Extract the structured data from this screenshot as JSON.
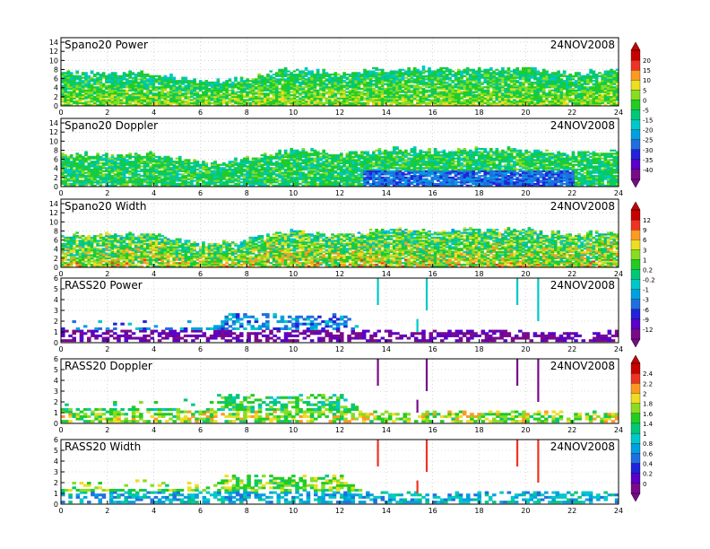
{
  "date_label": "24NOV2008",
  "x_ticks": [
    "0",
    "2",
    "4",
    "6",
    "8",
    "10",
    "12",
    "14",
    "16",
    "18",
    "20",
    "22",
    "24"
  ],
  "panels": [
    {
      "title": "Spano20 Power",
      "date": "24NOV2008",
      "y_ticks": [
        "0",
        "2",
        "4",
        "6",
        "8",
        "10",
        "12",
        "14"
      ],
      "colorbar": "power"
    },
    {
      "title": "Spano20 Doppler",
      "date": "24NOV2008",
      "y_ticks": [
        "0",
        "2",
        "4",
        "6",
        "8",
        "10",
        "12",
        "14"
      ],
      "colorbar": "doppler"
    },
    {
      "title": "Spano20 Width",
      "date": "24NOV2008",
      "y_ticks": [
        "0",
        "2",
        "4",
        "6",
        "8",
        "10",
        "12",
        "14"
      ],
      "colorbar": "width"
    },
    {
      "title": "RASS20 Power",
      "date": "24NOV2008",
      "y_ticks": [
        "0",
        "1",
        "2",
        "3",
        "4",
        "5",
        "6"
      ],
      "colorbar": "rass_power"
    },
    {
      "title": "RASS20 Doppler",
      "date": "24NOV2008",
      "y_ticks": [
        "0",
        "1",
        "2",
        "3",
        "4",
        "5",
        "6"
      ],
      "colorbar": "rass_doppler"
    },
    {
      "title": "RASS20 Width",
      "date": "24NOV2008",
      "y_ticks": [
        "0",
        "1",
        "2",
        "3",
        "4",
        "5",
        "6"
      ],
      "colorbar": "rass_width"
    }
  ],
  "colorbars": [
    {
      "id": "power",
      "labels": [
        "20",
        "15",
        "10",
        "5",
        "0",
        "-5",
        "-15",
        "-20",
        "-25",
        "-30",
        "-35",
        "-40"
      ]
    },
    {
      "id": "width",
      "labels": [
        "12",
        "9",
        "6",
        "3",
        "1",
        "0.2",
        "-0.2",
        "-1",
        "-3",
        "-6",
        "-9",
        "-12"
      ]
    },
    {
      "id": "rass_doppler",
      "labels": [
        "2.4",
        "2.2",
        "2",
        "1.8",
        "1.6",
        "1.4",
        "1",
        "0.8",
        "0.6",
        "0.4",
        "0.2",
        "0"
      ]
    }
  ],
  "colors": {
    "palette": [
      "#7a0a8a",
      "#5a00c8",
      "#2222dd",
      "#1f6fe0",
      "#00a0e0",
      "#00c8c8",
      "#00c878",
      "#22cc22",
      "#88dd22",
      "#eedd22",
      "#ff9922",
      "#ee3322",
      "#c80000"
    ],
    "frame": "#000000",
    "grid": "#bbbbbb"
  },
  "chart_data": [
    {
      "type": "heatmap",
      "title": "Spano20 Power",
      "xlabel": "",
      "ylabel": "",
      "xlim": [
        0,
        24
      ],
      "ylim": [
        0,
        15
      ],
      "top_height_by_hour": {
        "x": [
          0,
          1,
          3,
          4,
          5,
          6,
          8,
          10,
          12,
          14,
          16,
          18,
          20,
          22,
          24
        ],
        "y": [
          7,
          7,
          7,
          7,
          6,
          5,
          6,
          8,
          7,
          8,
          8,
          8,
          8,
          7,
          8
        ]
      },
      "grid": true
    },
    {
      "type": "heatmap",
      "title": "Spano20 Doppler",
      "xlabel": "",
      "ylabel": "",
      "xlim": [
        0,
        24
      ],
      "ylim": [
        0,
        15
      ],
      "top_height_by_hour": {
        "x": [
          0,
          1,
          3,
          4,
          5,
          6,
          8,
          10,
          12,
          14,
          16,
          18,
          20,
          22,
          24
        ],
        "y": [
          7,
          7,
          7,
          7,
          6,
          5,
          6,
          8,
          7,
          8,
          8,
          8,
          8,
          7,
          8
        ]
      },
      "grid": true
    },
    {
      "type": "heatmap",
      "title": "Spano20 Width",
      "xlabel": "",
      "ylabel": "",
      "xlim": [
        0,
        24
      ],
      "ylim": [
        0,
        15
      ],
      "top_height_by_hour": {
        "x": [
          0,
          1,
          3,
          4,
          5,
          6,
          8,
          10,
          12,
          14,
          16,
          18,
          20,
          22,
          24
        ],
        "y": [
          7,
          7,
          7,
          7,
          6,
          5,
          6,
          8,
          7,
          8,
          8,
          8,
          8,
          7,
          8
        ]
      },
      "grid": true
    },
    {
      "type": "heatmap",
      "title": "RASS20 Power",
      "xlabel": "",
      "ylabel": "",
      "xlim": [
        0,
        24
      ],
      "ylim": [
        0,
        6
      ],
      "top_height_by_hour": {
        "x": [
          0,
          6,
          7,
          12,
          13,
          14,
          16,
          18,
          20,
          22,
          24
        ],
        "y": [
          2,
          2,
          2.5,
          2.5,
          1,
          1,
          1,
          1,
          1,
          1,
          1
        ]
      },
      "grid": true
    },
    {
      "type": "heatmap",
      "title": "RASS20 Doppler",
      "xlabel": "",
      "ylabel": "",
      "xlim": [
        0,
        24
      ],
      "ylim": [
        0,
        6
      ],
      "top_height_by_hour": {
        "x": [
          0,
          6,
          7,
          12,
          13,
          14,
          16,
          18,
          20,
          22,
          24
        ],
        "y": [
          2,
          2,
          2.5,
          2.5,
          1,
          1,
          1,
          1,
          1,
          1,
          1
        ]
      },
      "grid": true
    },
    {
      "type": "heatmap",
      "title": "RASS20 Width",
      "xlabel": "",
      "ylabel": "",
      "xlim": [
        0,
        24
      ],
      "ylim": [
        0,
        6
      ],
      "top_height_by_hour": {
        "x": [
          0,
          6,
          7,
          12,
          13,
          14,
          16,
          18,
          20,
          22,
          24
        ],
        "y": [
          2,
          2,
          2.5,
          2.5,
          1,
          1,
          1,
          1,
          1,
          1,
          1
        ]
      },
      "grid": true
    }
  ]
}
